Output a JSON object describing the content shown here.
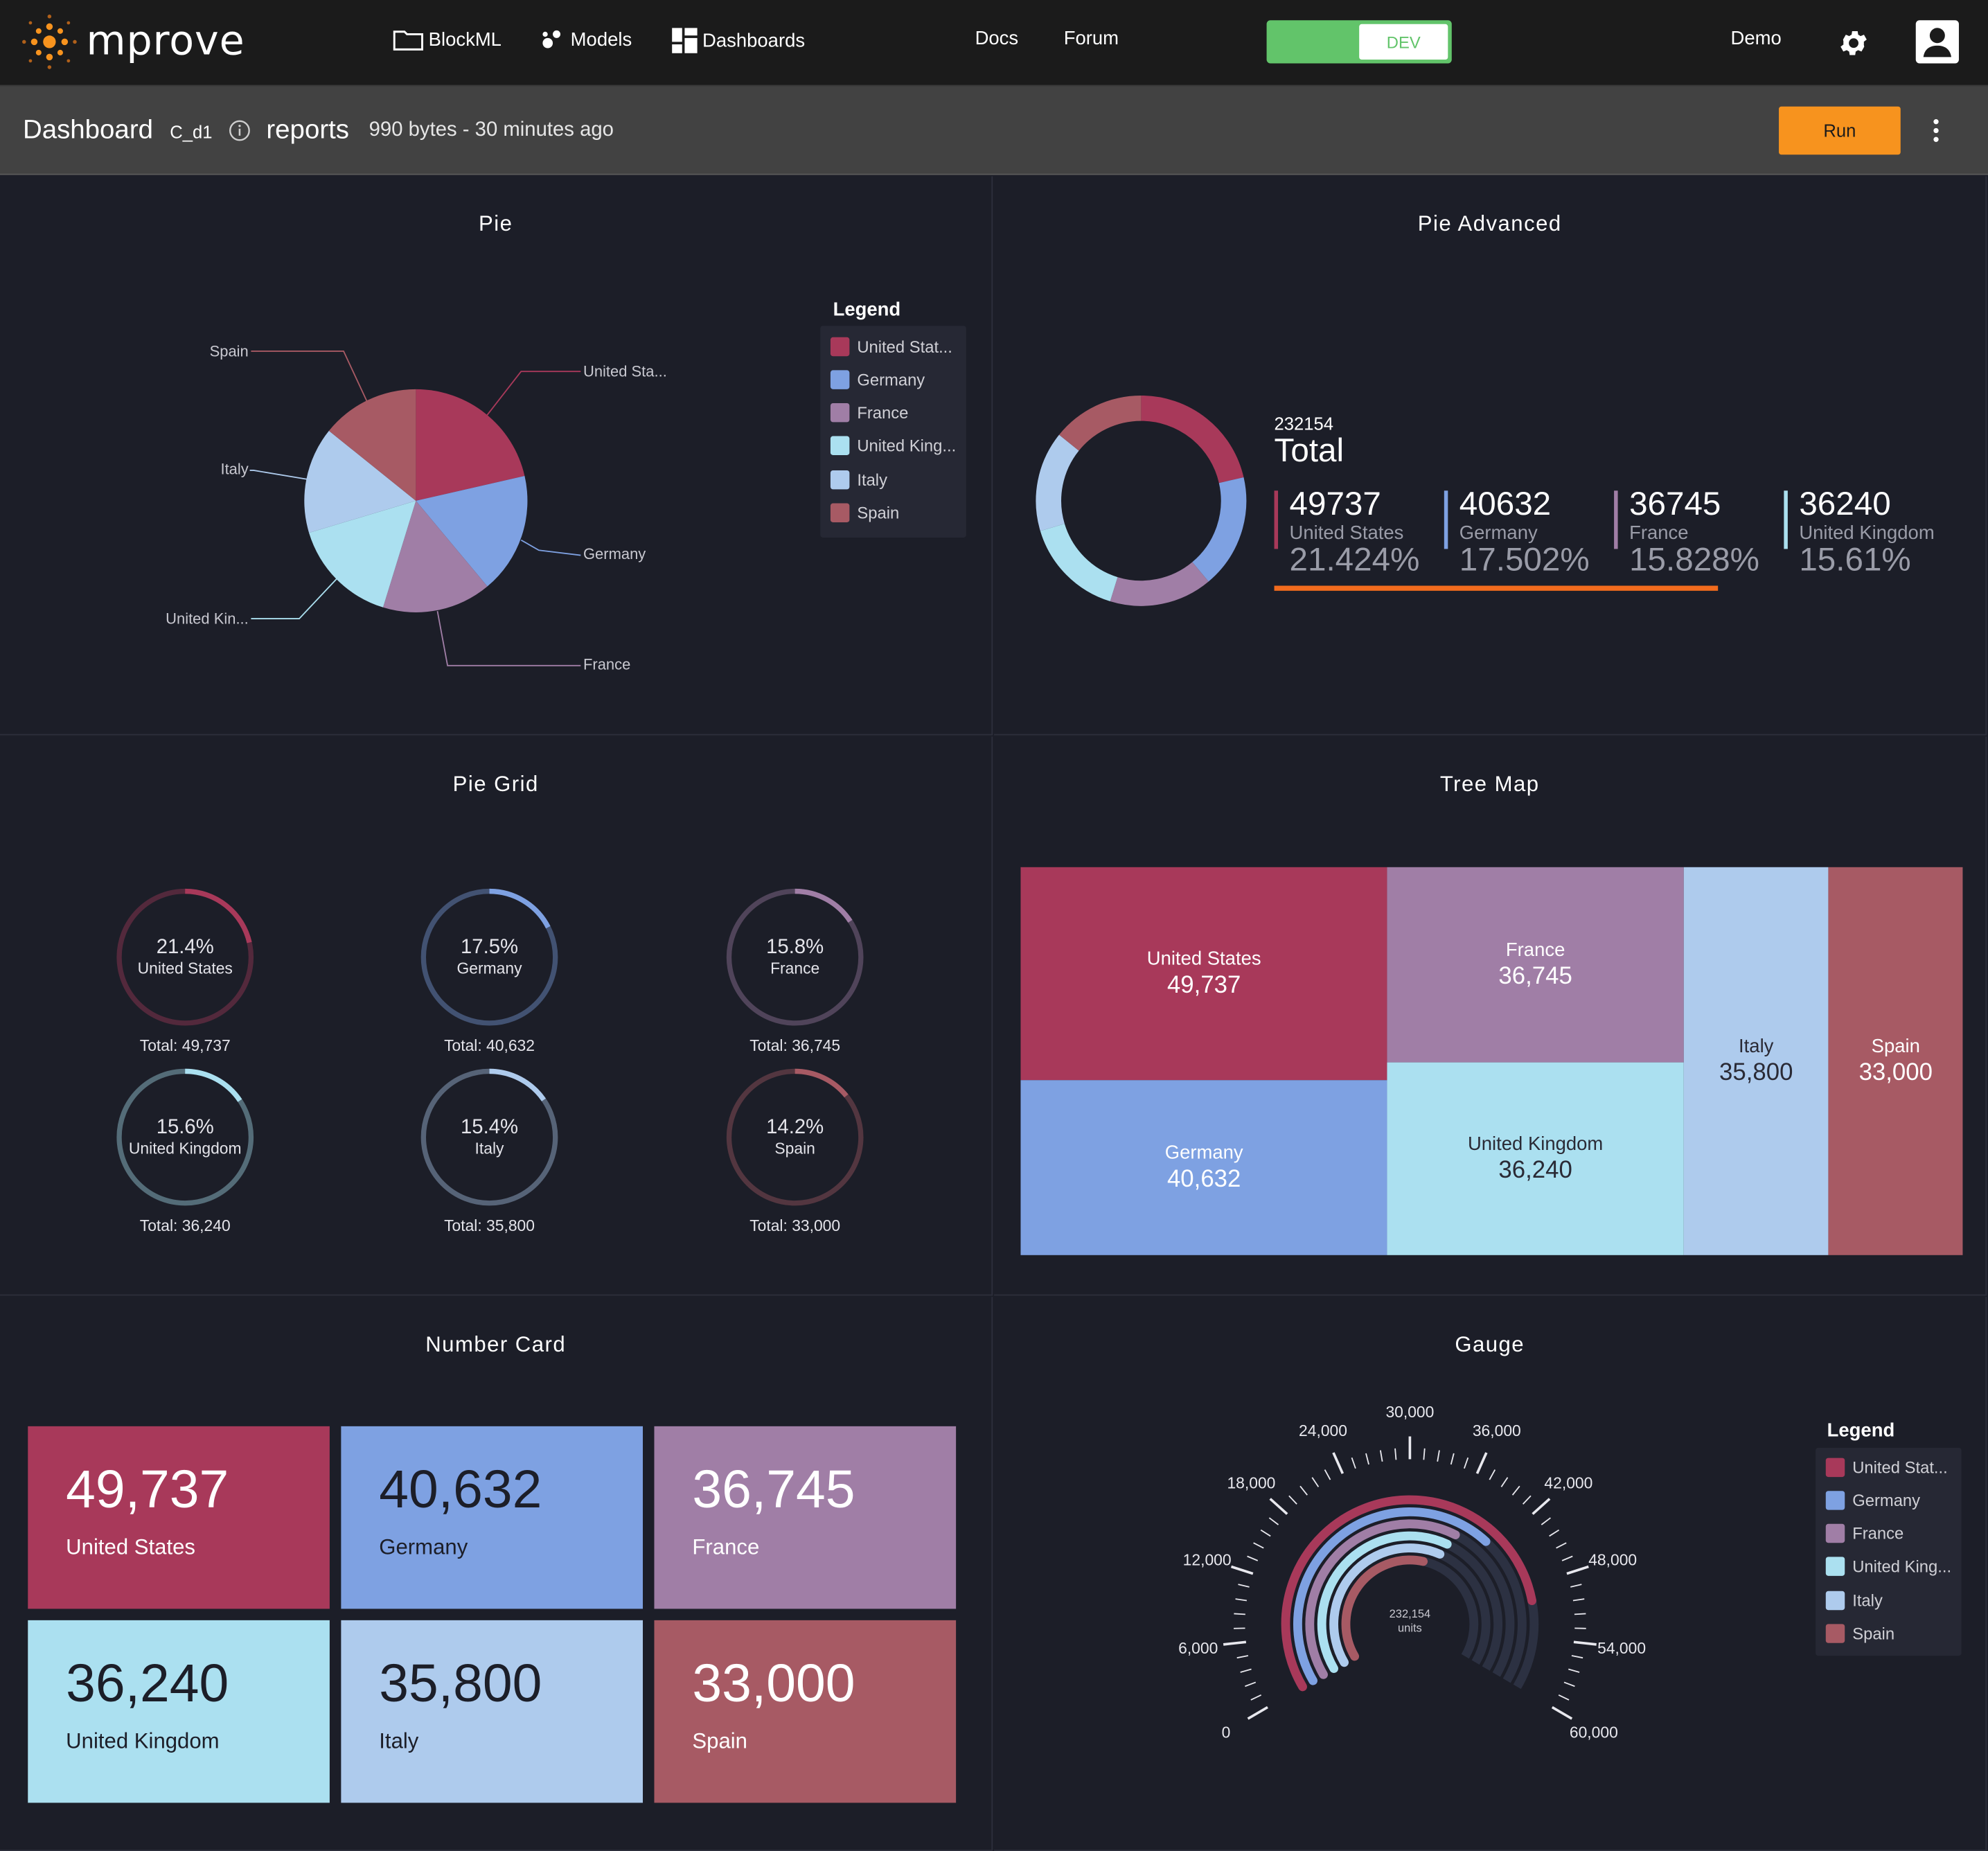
{
  "colors": {
    "United States": "#a8395a",
    "Germany": "#7ea1e2",
    "France": "#a07ea6",
    "United Kingdom": "#abe0f0",
    "Italy": "#aecbed",
    "Spain": "#a75a64",
    "accent_orange": "#f7931e",
    "dev_green": "#62c46a"
  },
  "header": {
    "logo_text": "mprove",
    "nav": [
      "BlockML",
      "Models",
      "Dashboards"
    ],
    "docs": "Docs",
    "forum": "Forum",
    "mode": "DEV",
    "user": "Demo"
  },
  "subheader": {
    "title": "Dashboard",
    "dashboard_id": "C_d1",
    "file_name": "reports",
    "file_info": "990 bytes - 30 minutes ago",
    "run_label": "Run"
  },
  "panels": {
    "pie": {
      "title": "Pie",
      "legend_title": "Legend",
      "legend": [
        "United Stat...",
        "Germany",
        "France",
        "United King...",
        "Italy",
        "Spain"
      ],
      "labels": [
        "United Sta...",
        "Germany",
        "France",
        "United Kin...",
        "Italy",
        "Spain"
      ]
    },
    "pie_advanced": {
      "title": "Pie Advanced",
      "total_value": "232154",
      "total_label": "Total",
      "items": [
        {
          "value": "49737",
          "name": "United States",
          "pct": "21.424%"
        },
        {
          "value": "40632",
          "name": "Germany",
          "pct": "17.502%"
        },
        {
          "value": "36745",
          "name": "France",
          "pct": "15.828%"
        },
        {
          "value": "36240",
          "name": "United Kingdom",
          "pct": "15.61%"
        }
      ]
    },
    "pie_grid": {
      "title": "Pie Grid",
      "items": [
        {
          "pct": "21.4%",
          "name": "United States",
          "total": "Total: 49,737"
        },
        {
          "pct": "17.5%",
          "name": "Germany",
          "total": "Total: 40,632"
        },
        {
          "pct": "15.8%",
          "name": "France",
          "total": "Total: 36,745"
        },
        {
          "pct": "15.6%",
          "name": "United Kingdom",
          "total": "Total: 36,240"
        },
        {
          "pct": "15.4%",
          "name": "Italy",
          "total": "Total: 35,800"
        },
        {
          "pct": "14.2%",
          "name": "Spain",
          "total": "Total: 33,000"
        }
      ]
    },
    "tree_map": {
      "title": "Tree Map",
      "cells": [
        {
          "name": "United States",
          "value": "49,737"
        },
        {
          "name": "France",
          "value": "36,745"
        },
        {
          "name": "Italy",
          "value": "35,800"
        },
        {
          "name": "Spain",
          "value": "33,000"
        },
        {
          "name": "Germany",
          "value": "40,632"
        },
        {
          "name": "United Kingdom",
          "value": "36,240"
        }
      ]
    },
    "number_card": {
      "title": "Number Card",
      "cards": [
        {
          "value": "49,737",
          "name": "United States"
        },
        {
          "value": "40,632",
          "name": "Germany"
        },
        {
          "value": "36,745",
          "name": "France"
        },
        {
          "value": "36,240",
          "name": "United Kingdom"
        },
        {
          "value": "35,800",
          "name": "Italy"
        },
        {
          "value": "33,000",
          "name": "Spain"
        }
      ]
    },
    "gauge": {
      "title": "Gauge",
      "center_value": "232,154",
      "center_unit": "units",
      "ticks": [
        "0",
        "6,000",
        "12,000",
        "18,000",
        "24,000",
        "30,000",
        "36,000",
        "42,000",
        "48,000",
        "54,000",
        "60,000"
      ],
      "legend_title": "Legend",
      "legend": [
        "United Stat...",
        "Germany",
        "France",
        "United King...",
        "Italy",
        "Spain"
      ]
    }
  },
  "chart_data": [
    {
      "type": "pie",
      "title": "Pie",
      "categories": [
        "United States",
        "Germany",
        "France",
        "United Kingdom",
        "Italy",
        "Spain"
      ],
      "values": [
        49737,
        40632,
        36745,
        36240,
        35800,
        33000
      ],
      "legend": "right"
    },
    {
      "type": "pie",
      "title": "Pie Advanced",
      "categories": [
        "United States",
        "Germany",
        "France",
        "United Kingdom",
        "Italy",
        "Spain"
      ],
      "values": [
        49737,
        40632,
        36745,
        36240,
        35800,
        33000
      ],
      "total": 232154
    },
    {
      "type": "pie",
      "title": "Pie Grid",
      "categories": [
        "United States",
        "Germany",
        "France",
        "United Kingdom",
        "Italy",
        "Spain"
      ],
      "values": [
        49737,
        40632,
        36745,
        36240,
        35800,
        33000
      ],
      "percent": [
        21.4,
        17.5,
        15.8,
        15.6,
        15.4,
        14.2
      ]
    },
    {
      "type": "heatmap",
      "title": "Tree Map",
      "categories": [
        "United States",
        "Germany",
        "France",
        "United Kingdom",
        "Italy",
        "Spain"
      ],
      "values": [
        49737,
        40632,
        36745,
        36240,
        35800,
        33000
      ]
    },
    {
      "type": "table",
      "title": "Number Card",
      "categories": [
        "United States",
        "Germany",
        "France",
        "United Kingdom",
        "Italy",
        "Spain"
      ],
      "values": [
        49737,
        40632,
        36745,
        36240,
        35800,
        33000
      ]
    },
    {
      "type": "bar",
      "title": "Gauge",
      "categories": [
        "United States",
        "Germany",
        "France",
        "United Kingdom",
        "Italy",
        "Spain"
      ],
      "values": [
        49737,
        40632,
        36745,
        36240,
        35800,
        33000
      ],
      "ylim": [
        0,
        60000
      ],
      "total": 232154,
      "legend": "right"
    }
  ]
}
